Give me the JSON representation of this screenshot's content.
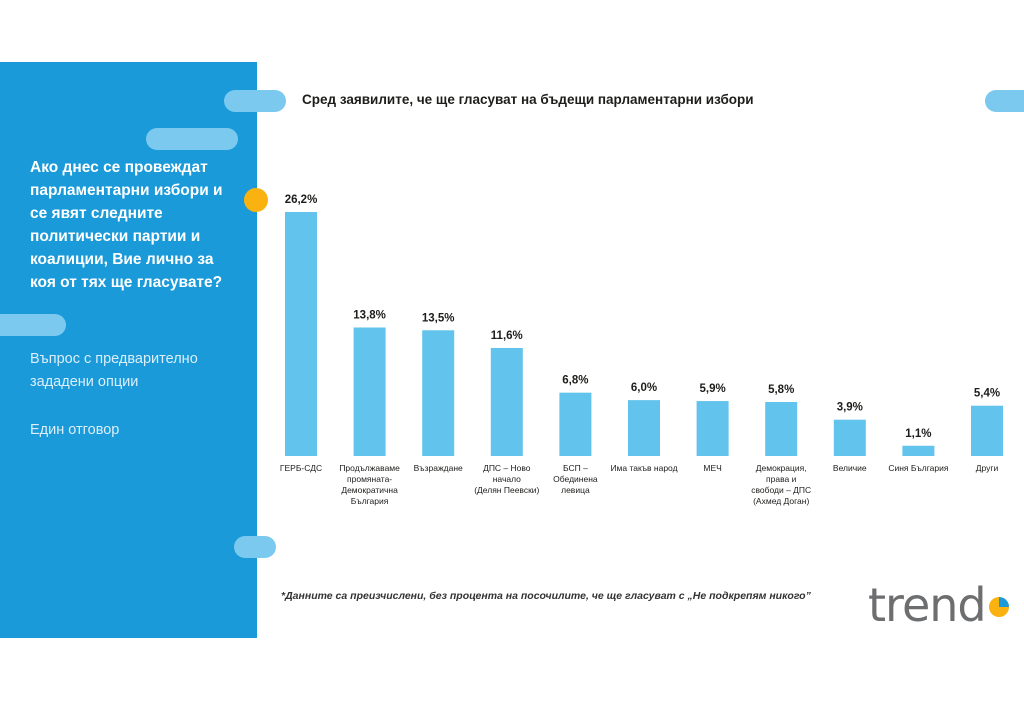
{
  "slide": {
    "question": "Ако днес се провеждат парламентарни избори и се явят следните политически партии и коалиции, Вие лично за коя от тях ще гласувате?",
    "question_type": "Въпрос с предварително зададени опции",
    "answer_type": "Един отговор",
    "footnote": "*Данните са преизчислени, без процента на посочилите, че ще гласуват с „Не подкрепям никого”",
    "logo_text": "trend"
  },
  "colors": {
    "panel": "#1a9ad9",
    "bar": "#62c3ec",
    "pill_light": "#7cc9ef",
    "accent": "#f9b20f",
    "text_dark": "#1d1d1b",
    "logo_gray": "#6d6e70"
  },
  "chart_data": {
    "type": "bar",
    "title": "Сред заявилите, че ще гласуват на бъдещи парламентарни избори",
    "categories": [
      [
        "ГЕРБ-СДС"
      ],
      [
        "Продължаваме",
        "промяната-",
        "Демократична",
        "България"
      ],
      [
        "Възраждане"
      ],
      [
        "ДПС – Ново",
        "начало",
        "(Делян Пеевски)"
      ],
      [
        "БСП –",
        "Обединена",
        "левица"
      ],
      [
        "Има такъв народ"
      ],
      [
        "МЕЧ"
      ],
      [
        "Демокрация,",
        "права и",
        "свободи – ДПС",
        "(Ахмед Доган)"
      ],
      [
        "Величие"
      ],
      [
        "Синя България"
      ],
      [
        "Други"
      ]
    ],
    "values": [
      26.2,
      13.8,
      13.5,
      11.6,
      6.8,
      6.0,
      5.9,
      5.8,
      3.9,
      1.1,
      5.4
    ],
    "value_labels": [
      "26,2%",
      "13,8%",
      "13,5%",
      "11,6%",
      "6,8%",
      "6,0%",
      "5,9%",
      "5,8%",
      "3,9%",
      "1,1%",
      "5,4%"
    ],
    "ylim": [
      0,
      26.2
    ],
    "xlabel": "",
    "ylabel": "",
    "grid": false
  }
}
